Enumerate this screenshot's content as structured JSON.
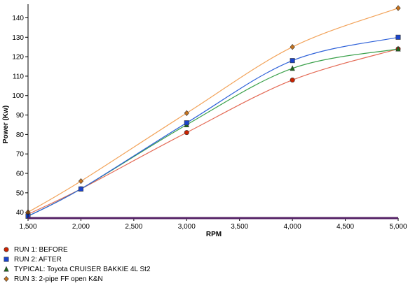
{
  "chart_data": {
    "type": "line",
    "xlabel": "RPM",
    "ylabel": "Power (Kw)",
    "x": [
      1500,
      2000,
      3000,
      4000,
      5000
    ],
    "x_ticks": [
      1500,
      2000,
      2500,
      3000,
      3500,
      4000,
      4500,
      5000
    ],
    "x_tick_labels": [
      "1,500",
      "2,000",
      "2,500",
      "3,000",
      "3,500",
      "4,000",
      "4,500",
      "5,000"
    ],
    "y_ticks": [
      40,
      50,
      60,
      70,
      80,
      90,
      100,
      110,
      120,
      130,
      140
    ],
    "xlim": [
      1500,
      5000
    ],
    "ylim": [
      37,
      147
    ],
    "grid": false,
    "legend_position": "bottom-left",
    "series": [
      {
        "name": "RUN 1: BEFORE",
        "color": "#e46a55",
        "marker": "circle",
        "marker_color": "#cc2200",
        "values": [
          39,
          52,
          81,
          108,
          124
        ]
      },
      {
        "name": "RUN 2: AFTER",
        "color": "#2f62d9",
        "marker": "square",
        "marker_color": "#1a44cc",
        "values": [
          38,
          52,
          86,
          118,
          130
        ]
      },
      {
        "name": "TYPICAL: Toyota CRUISER BAKKIE 4L St2",
        "color": "#3aa04a",
        "marker": "triangle",
        "marker_color": "#1c6b1c",
        "values": [
          38,
          52,
          85,
          114,
          124
        ]
      },
      {
        "name": "RUN 3: 2-pipe FF open K&N",
        "color": "#f2a35a",
        "marker": "diamond",
        "marker_color": "#c8741e",
        "values": [
          40,
          56,
          91,
          125,
          145
        ]
      }
    ],
    "baseline_color": "#552266"
  }
}
